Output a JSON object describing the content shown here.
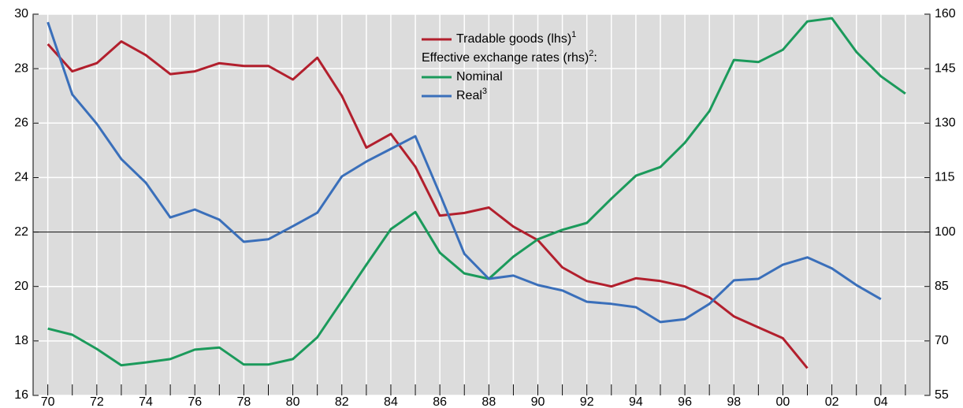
{
  "chart_data": {
    "type": "line",
    "x": [
      1970,
      1971,
      1972,
      1973,
      1974,
      1975,
      1976,
      1977,
      1978,
      1979,
      1980,
      1981,
      1982,
      1983,
      1984,
      1985,
      1986,
      1987,
      1988,
      1989,
      1990,
      1991,
      1992,
      1993,
      1994,
      1995,
      1996,
      1997,
      1998,
      1999,
      2000,
      2001,
      2002,
      2003,
      2004,
      2005
    ],
    "xlim": [
      1969.4,
      2006
    ],
    "xticks": [
      {
        "value": 1970,
        "label": "70"
      },
      {
        "value": 1972,
        "label": "72"
      },
      {
        "value": 1974,
        "label": "74"
      },
      {
        "value": 1976,
        "label": "76"
      },
      {
        "value": 1978,
        "label": "78"
      },
      {
        "value": 1980,
        "label": "80"
      },
      {
        "value": 1982,
        "label": "82"
      },
      {
        "value": 1984,
        "label": "84"
      },
      {
        "value": 1986,
        "label": "86"
      },
      {
        "value": 1988,
        "label": "88"
      },
      {
        "value": 1990,
        "label": "90"
      },
      {
        "value": 1992,
        "label": "92"
      },
      {
        "value": 1994,
        "label": "94"
      },
      {
        "value": 1996,
        "label": "96"
      },
      {
        "value": 1998,
        "label": "98"
      },
      {
        "value": 2000,
        "label": "00"
      },
      {
        "value": 2002,
        "label": "02"
      },
      {
        "value": 2004,
        "label": "04"
      }
    ],
    "xminorticks": [
      1971,
      1973,
      1975,
      1977,
      1979,
      1981,
      1983,
      1985,
      1987,
      1989,
      1991,
      1993,
      1995,
      1997,
      1999,
      2001,
      2003,
      2005
    ],
    "ylim": [
      16,
      30
    ],
    "yticks": [
      16,
      18,
      20,
      22,
      24,
      26,
      28,
      30
    ],
    "y2lim": [
      55,
      160
    ],
    "y2ticks": [
      55,
      70,
      85,
      100,
      115,
      130,
      145,
      160
    ],
    "hline": 22,
    "grid": true,
    "background": "#dcdcdc",
    "legend_heading": "Effective exchange rates (rhs)",
    "legend_heading_footnote": "2",
    "legend_heading_suffix": ":",
    "series": [
      {
        "name": "Tradable goods (lhs)",
        "footnote": "1",
        "color": "#b21f2d",
        "values": [
          28.9,
          27.9,
          28.2,
          29.0,
          28.5,
          27.8,
          27.9,
          28.2,
          28.1,
          28.1,
          27.6,
          28.4,
          27.0,
          25.1,
          25.6,
          24.4,
          22.6,
          22.7,
          22.9,
          22.2,
          21.7,
          20.7,
          20.2,
          20.0,
          20.3,
          20.2,
          20.0,
          19.6,
          18.9,
          18.5,
          18.1,
          17.0,
          null,
          null,
          null,
          null
        ]
      },
      {
        "name": "Nominal",
        "color": "#1b9a5b",
        "axis": "y2",
        "values": [
          73.4,
          71.7,
          67.8,
          63.3,
          64.1,
          65.0,
          67.6,
          68.2,
          63.5,
          63.5,
          65.0,
          71.0,
          81.0,
          91.0,
          100.8,
          105.5,
          94.3,
          88.6,
          87.1,
          93.2,
          98.0,
          100.6,
          102.5,
          109.2,
          115.5,
          117.9,
          124.6,
          133.3,
          147.4,
          146.8,
          150.2,
          158.0,
          158.9,
          149.6,
          142.9,
          138.1
        ]
      },
      {
        "name": "Real",
        "footnote": "3",
        "color": "#3a6fba",
        "axis": "y2",
        "values": [
          157.8,
          137.9,
          129.8,
          120.1,
          113.6,
          104.0,
          106.2,
          103.4,
          97.3,
          98.0,
          101.6,
          105.3,
          115.3,
          119.4,
          122.9,
          126.4,
          110.5,
          94.0,
          87.1,
          88.0,
          85.4,
          83.9,
          80.8,
          80.2,
          79.3,
          75.2,
          76.0,
          80.2,
          86.7,
          87.1,
          91.0,
          93.0,
          90.0,
          85.4,
          81.5,
          null
        ]
      }
    ]
  }
}
